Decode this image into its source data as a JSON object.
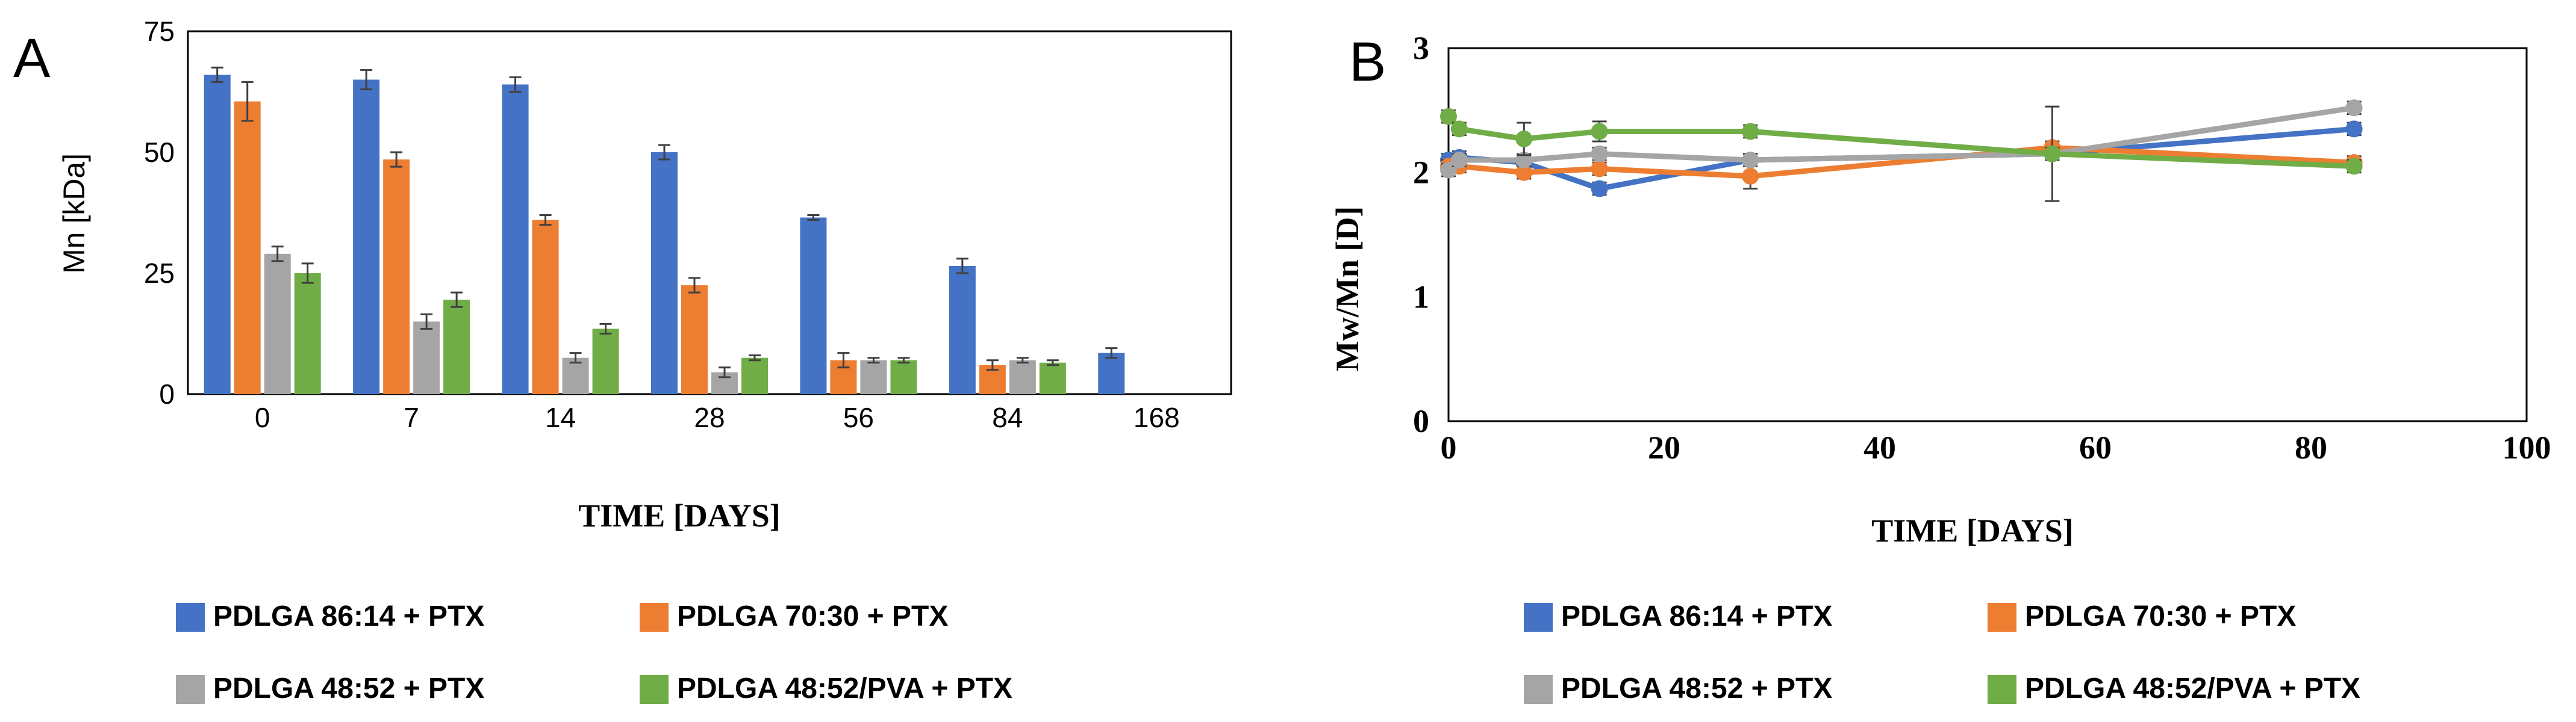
{
  "panels": {
    "a": {
      "letter": "A"
    },
    "b": {
      "letter": "B"
    }
  },
  "chart_data": [
    {
      "type": "bar",
      "xlabel": "TIME [DAYS]",
      "ylabel": "Mn [kDa]",
      "ylim": [
        0,
        75
      ],
      "yticks": [
        "0",
        "25",
        "50",
        "75"
      ],
      "categories": [
        "0",
        "7",
        "14",
        "28",
        "56",
        "84",
        "168"
      ],
      "grid": false,
      "legend_position": "bottom",
      "series": [
        {
          "name": "PDLGA 86:14 + PTX",
          "color": "#4472C4",
          "values": [
            66,
            65,
            64,
            50,
            36.5,
            26.5,
            8.5
          ],
          "errors": [
            1.5,
            2,
            1.5,
            1.5,
            0.5,
            1.5,
            1
          ]
        },
        {
          "name": "PDLGA 70:30 + PTX",
          "color": "#ED7D31",
          "values": [
            60.5,
            48.5,
            36,
            22.5,
            7,
            6,
            null
          ],
          "errors": [
            4,
            1.5,
            1,
            1.5,
            1.5,
            1,
            null
          ]
        },
        {
          "name": "PDLGA 48:52 + PTX",
          "color": "#A5A5A5",
          "values": [
            29,
            15,
            7.5,
            4.5,
            7,
            7,
            null
          ],
          "errors": [
            1.5,
            1.5,
            1,
            1,
            0.5,
            0.5,
            null
          ]
        },
        {
          "name": "PDLGA 48:52/PVA + PTX",
          "color": "#70AD47",
          "values": [
            25,
            19.5,
            13.5,
            7.5,
            7,
            6.5,
            null
          ],
          "errors": [
            2,
            1.5,
            1,
            0.5,
            0.5,
            0.5,
            null
          ]
        }
      ]
    },
    {
      "type": "line",
      "xlabel": "TIME [DAYS]",
      "ylabel": "Mw/Mn [D]",
      "xlim": [
        0,
        100
      ],
      "ylim": [
        0,
        3
      ],
      "xticks": [
        "0",
        "20",
        "40",
        "60",
        "80",
        "100"
      ],
      "yticks": [
        "0",
        "1",
        "2",
        "3"
      ],
      "grid": false,
      "legend_position": "bottom",
      "series": [
        {
          "name": "PDLGA 86:14 + PTX",
          "color": "#4472C4",
          "x": [
            0,
            1,
            7,
            14,
            28,
            56,
            84
          ],
          "y": [
            2.1,
            2.12,
            2.08,
            1.87,
            2.1,
            2.15,
            2.35
          ],
          "errors": [
            0.05,
            0.05,
            0.05,
            0.05,
            0.05,
            0.05,
            0.05
          ]
        },
        {
          "name": "PDLGA 70:30 + PTX",
          "color": "#ED7D31",
          "x": [
            0,
            1,
            7,
            14,
            28,
            56,
            84
          ],
          "y": [
            2.05,
            2.05,
            2.0,
            2.03,
            1.97,
            2.2,
            2.08
          ],
          "errors": [
            0.05,
            0.05,
            0.05,
            0.05,
            0.1,
            0.05,
            0.05
          ]
        },
        {
          "name": "PDLGA 48:52 + PTX",
          "color": "#A5A5A5",
          "x": [
            0,
            1,
            7,
            14,
            28,
            56,
            84
          ],
          "y": [
            2.02,
            2.1,
            2.1,
            2.15,
            2.1,
            2.15,
            2.52
          ],
          "errors": [
            0.05,
            0.05,
            0.05,
            0.05,
            0.05,
            0.38,
            0.05
          ]
        },
        {
          "name": "PDLGA 48:52/PVA + PTX",
          "color": "#70AD47",
          "x": [
            0,
            1,
            7,
            14,
            28,
            56,
            84
          ],
          "y": [
            2.45,
            2.35,
            2.27,
            2.33,
            2.33,
            2.15,
            2.05
          ],
          "errors": [
            0.05,
            0.05,
            0.13,
            0.08,
            0.05,
            0.05,
            0.05
          ]
        }
      ]
    }
  ]
}
